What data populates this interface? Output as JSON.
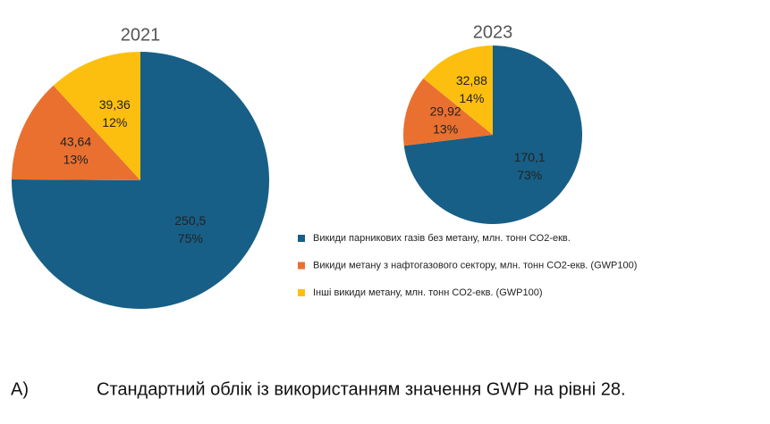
{
  "chart_data": [
    {
      "type": "pie",
      "title": "2021",
      "values": [
        250.5,
        43.64,
        39.36
      ],
      "value_labels": [
        "250,5",
        "43,64",
        "39,36"
      ],
      "percents": [
        75,
        13,
        12
      ],
      "percent_labels": [
        "75%",
        "13%",
        "12%"
      ]
    },
    {
      "type": "pie",
      "title": "2023",
      "values": [
        170.1,
        29.92,
        32.88
      ],
      "value_labels": [
        "170,1",
        "29,92",
        "32,88"
      ],
      "percents": [
        73,
        13,
        14
      ],
      "percent_labels": [
        "73%",
        "13%",
        "14%"
      ]
    }
  ],
  "legend": [
    {
      "name": "Викиди парникових газів без метану, млн. тонн CO2-екв.",
      "color": "#175f86"
    },
    {
      "name": "Викиди метану з нафтогазового сектору, млн. тонн CO2-екв. (GWP100)",
      "color": "#ea7030"
    },
    {
      "name": "Інші викиди метану, млн. тонн CO2-екв. (GWP100)",
      "color": "#fdbf0f"
    }
  ],
  "caption": {
    "label": "А)",
    "text": "Стандартний облік із використанням значення GWP на рівні 28."
  }
}
